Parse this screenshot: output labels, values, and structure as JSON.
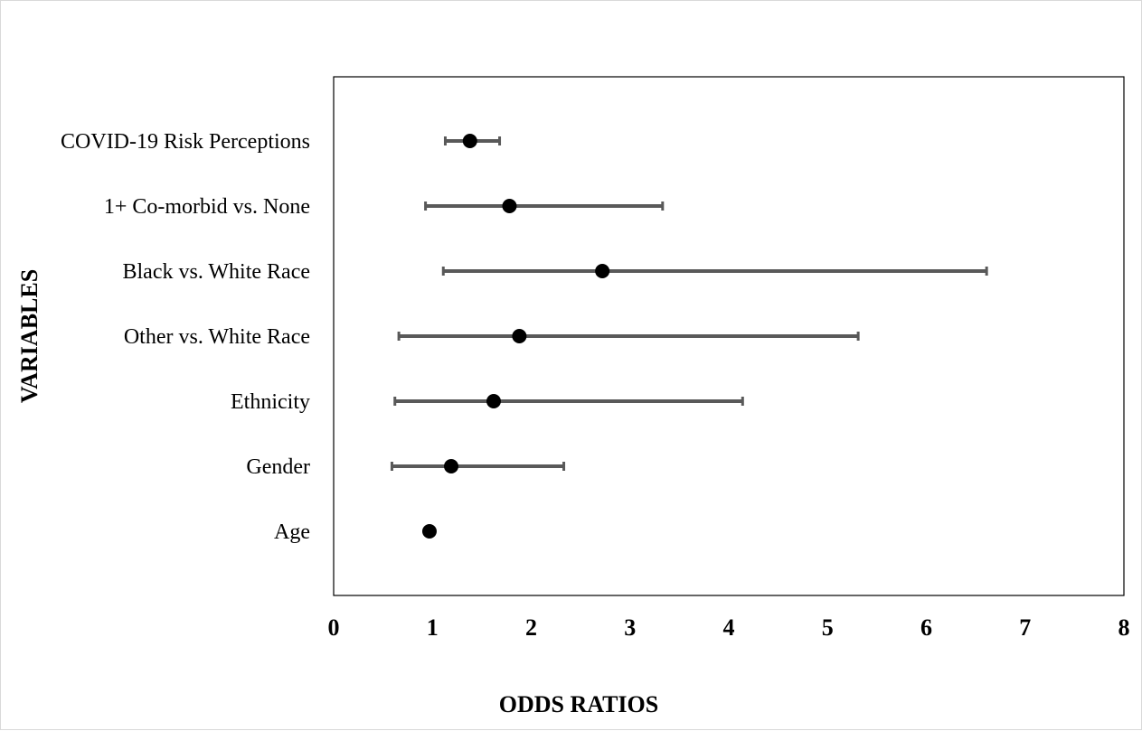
{
  "chart_data": {
    "type": "scatter",
    "subtype": "forest-plot",
    "title": "",
    "xlabel": "ODDS RATIOS",
    "ylabel": "VARIABLES",
    "xlim": [
      0,
      8
    ],
    "xticks": [
      0,
      1,
      2,
      3,
      4,
      5,
      6,
      7,
      8
    ],
    "grid": false,
    "legend": "none",
    "colors": {
      "point": "#000000",
      "error_bar": "#595959",
      "plot_border": "#000000",
      "frame": "#d9d9d9"
    },
    "categories": [
      "COVID-19 Risk Perceptions",
      "1+ Co-morbid vs. None",
      "Black vs. White Race",
      "Other vs. White Race",
      "Ethnicity",
      "Gender",
      "Age"
    ],
    "series": [
      {
        "values": [
          1.38,
          1.78,
          2.72,
          1.88,
          1.62,
          1.19,
          0.97
        ],
        "ci_lower": [
          1.13,
          0.93,
          1.11,
          0.66,
          0.62,
          0.59,
          0.96
        ],
        "ci_upper": [
          1.68,
          3.33,
          6.61,
          5.31,
          4.14,
          2.33,
          0.98
        ]
      }
    ]
  }
}
